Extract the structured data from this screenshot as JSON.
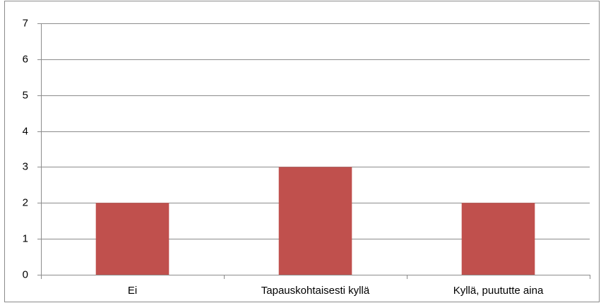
{
  "chart_data": {
    "type": "bar",
    "categories": [
      "Ei",
      "Tapauskohtaisesti kyllä",
      "Kyllä, puututte aina"
    ],
    "values": [
      2,
      3,
      2
    ],
    "color": "#c0504d",
    "ylim": [
      0,
      7
    ],
    "yticks": [
      0,
      1,
      2,
      3,
      4,
      5,
      6,
      7
    ],
    "grid": true
  }
}
